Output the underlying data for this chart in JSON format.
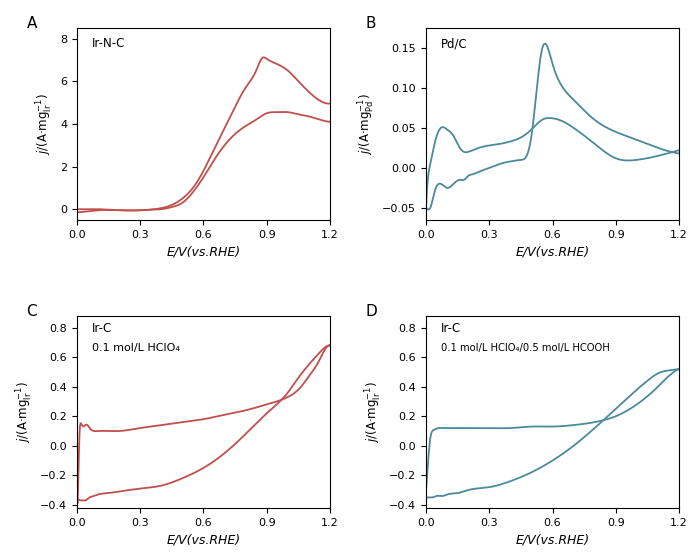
{
  "panel_A": {
    "label": "A",
    "legend": "Ir-N-C",
    "color": "#c0504d",
    "xlabel": "E/V(vs.RHE)",
    "xlim": [
      0.0,
      1.2
    ],
    "ylim": [
      -0.5,
      8.5
    ],
    "yticks": [
      0,
      2,
      4,
      6,
      8
    ],
    "xticks": [
      0.0,
      0.3,
      0.6,
      0.9,
      1.2
    ]
  },
  "panel_B": {
    "label": "B",
    "legend": "Pd/C",
    "color": "#4a8a9a",
    "xlabel": "E/V(vs.RHE)",
    "xlim": [
      0.0,
      1.2
    ],
    "ylim": [
      -0.065,
      0.175
    ],
    "yticks": [
      -0.05,
      0.0,
      0.05,
      0.1,
      0.15
    ],
    "xticks": [
      0.0,
      0.3,
      0.6,
      0.9,
      1.2
    ]
  },
  "panel_C": {
    "label": "C",
    "legend1": "Ir-C",
    "legend2": "0.1 mol/L HClO₄",
    "color": "#c0504d",
    "xlabel": "E/V(vs.RHE)",
    "xlim": [
      0.0,
      1.2
    ],
    "ylim": [
      -0.42,
      0.88
    ],
    "yticks": [
      -0.4,
      -0.2,
      0.0,
      0.2,
      0.4,
      0.6,
      0.8
    ],
    "xticks": [
      0.0,
      0.3,
      0.6,
      0.9,
      1.2
    ]
  },
  "panel_D": {
    "label": "D",
    "legend1": "Ir-C",
    "legend2": "0.1 mol/L HClO₄/0.5 mol/L HCOOH",
    "color": "#4a8a9a",
    "xlabel": "E/V(vs.RHE)",
    "xlim": [
      0.0,
      1.2
    ],
    "ylim": [
      -0.42,
      0.88
    ],
    "yticks": [
      -0.4,
      -0.2,
      0.0,
      0.2,
      0.4,
      0.6,
      0.8
    ],
    "xticks": [
      0.0,
      0.3,
      0.6,
      0.9,
      1.2
    ]
  }
}
